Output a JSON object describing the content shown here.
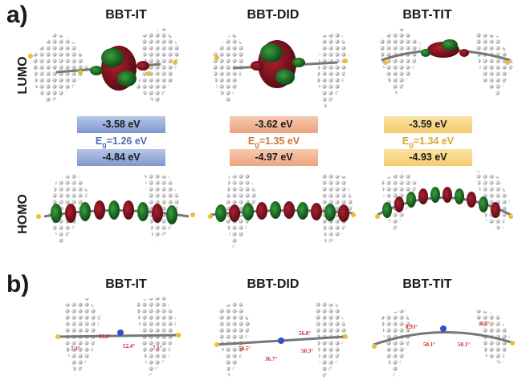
{
  "panel_a": {
    "letter": "a)"
  },
  "panel_b": {
    "letter": "b)"
  },
  "row_labels": {
    "lumo": "LUMO",
    "homo": "HOMO"
  },
  "molecules": [
    {
      "name": "BBT-IT",
      "lumo": "-3.58 eV",
      "gap_prefix": "E",
      "gap_sub": "g",
      "gap_value": "=1.26 eV",
      "homo": "-4.84 eV",
      "color": "#4a6fb5",
      "box_gradient": [
        "#b7c6e6",
        "#7e98cf"
      ],
      "angles": [
        "7.3°",
        "53.0°",
        "52.4°",
        "7.1°"
      ]
    },
    {
      "name": "BBT-DID",
      "lumo": "-3.62 eV",
      "gap_prefix": "E",
      "gap_sub": "g",
      "gap_value": "=1.35 eV",
      "homo": "-4.97 eV",
      "color": "#d0753a",
      "box_gradient": [
        "#f6c9ad",
        "#eca57f"
      ],
      "angles": [
        "50.5°",
        "36.7°",
        "56.8°",
        "50.3°"
      ]
    },
    {
      "name": "BBT-TIT",
      "lumo": "-3.59 eV",
      "gap_prefix": "E",
      "gap_sub": "g",
      "gap_value": "=1.34 eV",
      "homo": "-4.93 eV",
      "color": "#d9a830",
      "box_gradient": [
        "#fbe2a6",
        "#f4cc6e"
      ],
      "angles": [
        "0.93°",
        "50.1°",
        "50.1°",
        "8.5°"
      ]
    }
  ]
}
